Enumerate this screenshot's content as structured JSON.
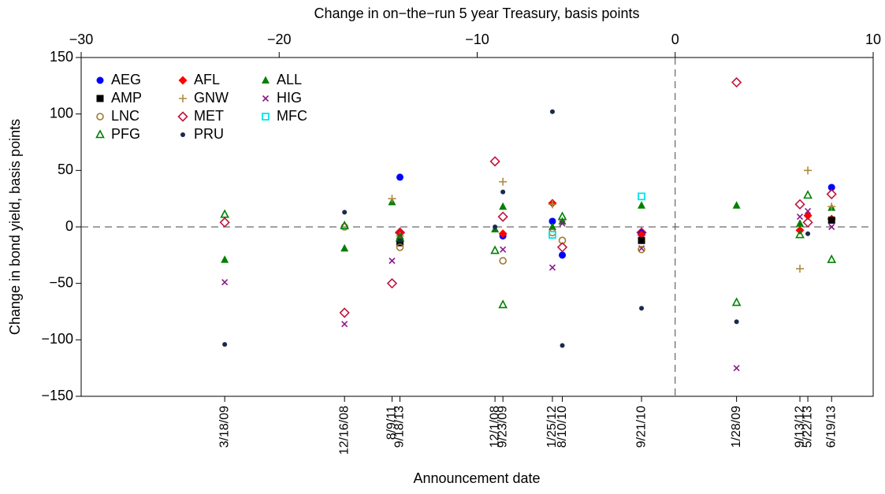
{
  "chart_data": {
    "type": "scatter",
    "x_title": "Change in on−the−run 5 year Treasury, basis points",
    "y_title": "Change in bond yield, basis points",
    "date_axis_title": "Announcement date",
    "x": [
      -22.75,
      -16.7,
      -14.3,
      -13.9,
      -9.1,
      -8.7,
      -6.2,
      -5.7,
      -1.7,
      3.1,
      6.3,
      6.7,
      7.9
    ],
    "event_dates": [
      "3/18/09",
      "12/16/08",
      "8/9/11",
      "9/18/13",
      "12/1/08",
      "9/23/09",
      "1/25/12",
      "8/10/10",
      "9/21/10",
      "1/28/09",
      "9/13/12",
      "5/22/13",
      "6/19/13"
    ],
    "xlim": [
      -30,
      10
    ],
    "xticks": [
      {
        "value": -30,
        "label": "−30"
      },
      {
        "value": -20,
        "label": "−20"
      },
      {
        "value": -10,
        "label": "−10"
      },
      0,
      10
    ],
    "ylim": [
      -150,
      150
    ],
    "yticks": [
      150,
      100,
      50,
      0,
      {
        "value": -50,
        "label": "−50"
      },
      {
        "value": -100,
        "label": "−100"
      },
      {
        "value": -150,
        "label": "−150"
      }
    ],
    "hlines": [
      0
    ],
    "vlines": [
      0
    ],
    "legend": "upper left",
    "series": [
      {
        "name": "AEG",
        "color": "#0000ff",
        "marker": "circle",
        "values": [
          null,
          null,
          null,
          44,
          null,
          -8,
          5,
          -25,
          -5,
          null,
          null,
          null,
          35
        ]
      },
      {
        "name": "AFL",
        "color": "#ff0000",
        "marker": "diamond",
        "values": [
          null,
          null,
          null,
          -5,
          null,
          -6,
          21,
          null,
          -7,
          null,
          -3,
          10,
          7
        ]
      },
      {
        "name": "ALL",
        "color": "#008000",
        "marker": "triangle",
        "values": [
          -29,
          -19,
          22,
          -8,
          -2,
          18,
          0,
          5,
          19,
          19,
          3,
          null,
          17
        ]
      },
      {
        "name": "AMP",
        "color": "#000000",
        "marker": "square",
        "values": [
          null,
          null,
          null,
          -14,
          null,
          null,
          null,
          null,
          -12,
          null,
          null,
          null,
          6
        ]
      },
      {
        "name": "GNW",
        "color": "#b08a40",
        "marker": "plus",
        "values": [
          null,
          null,
          25,
          -8,
          null,
          40,
          20,
          null,
          null,
          null,
          -37,
          50,
          18
        ]
      },
      {
        "name": "HIG",
        "color": "#8b1a8b",
        "marker": "x",
        "values": [
          -49,
          -86,
          -30,
          null,
          null,
          -20,
          -36,
          3,
          -19,
          -125,
          9,
          14,
          0
        ]
      },
      {
        "name": "LNC",
        "color": "#a07830",
        "marker": "ocircle",
        "values": [
          null,
          0,
          null,
          -18,
          null,
          -30,
          -5,
          -12,
          -20,
          null,
          null,
          null,
          null
        ]
      },
      {
        "name": "MET",
        "color": "#c0143c",
        "marker": "odiamond",
        "values": [
          4,
          -76,
          -50,
          -5,
          58,
          9,
          null,
          -18,
          -5,
          128,
          20,
          4,
          29
        ]
      },
      {
        "name": "MFC",
        "color": "#00e5ee",
        "marker": "osquare",
        "values": [
          null,
          null,
          null,
          null,
          null,
          null,
          -7,
          null,
          27,
          null,
          null,
          null,
          null
        ]
      },
      {
        "name": "PFG",
        "color": "#008000",
        "marker": "otriangle",
        "values": [
          11,
          1,
          null,
          -10,
          -21,
          -69,
          null,
          9,
          null,
          -67,
          -7,
          28,
          -29
        ]
      },
      {
        "name": "PRU",
        "color": "#1a2a4a",
        "marker": "dot",
        "values": [
          -104,
          13,
          null,
          -12,
          0,
          31,
          102,
          -105,
          -72,
          -84,
          null,
          -6,
          null
        ]
      }
    ]
  }
}
